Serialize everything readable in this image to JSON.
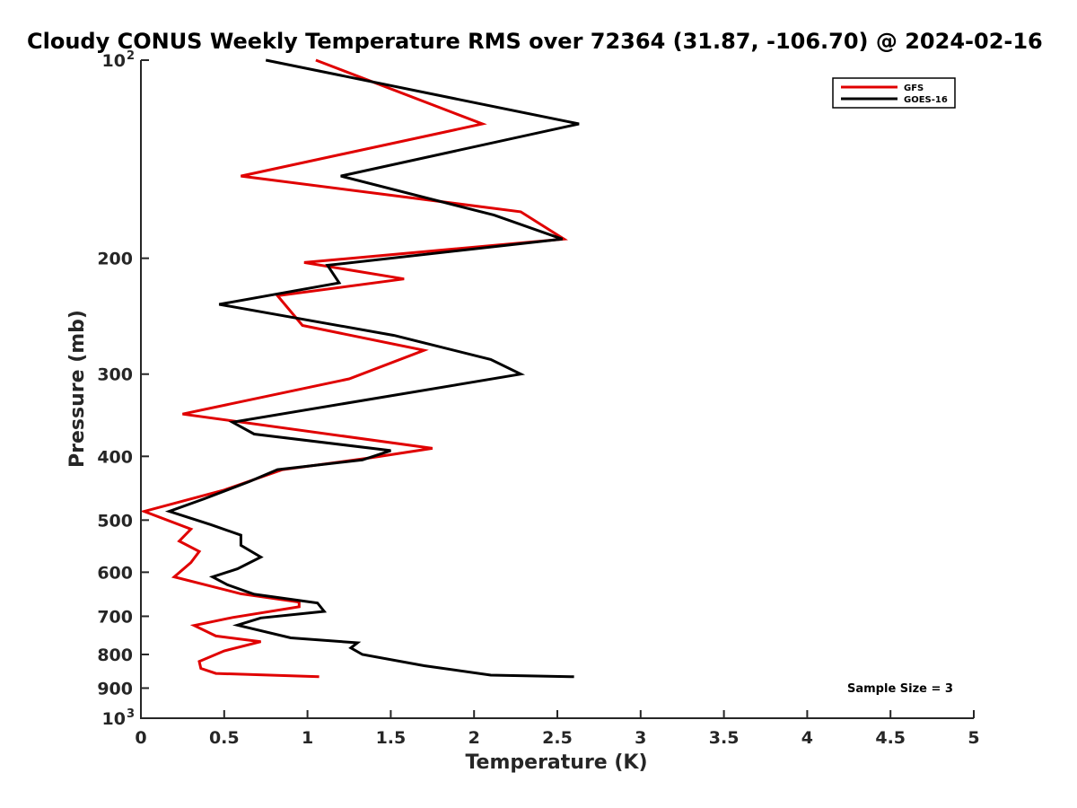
{
  "chart_data": {
    "type": "line",
    "title": "Cloudy CONUS Weekly Temperature RMS over 72364 (31.87, -106.70) @ 2024-02-16",
    "xlabel": "Temperature (K)",
    "ylabel": "Pressure (mb)",
    "xlim": [
      0,
      5
    ],
    "ylim": [
      100,
      1000
    ],
    "y_scale": "log",
    "y_reversed": true,
    "x_ticks": [
      "0",
      "0.5",
      "1",
      "1.5",
      "2",
      "2.5",
      "3",
      "3.5",
      "4",
      "4.5",
      "5"
    ],
    "y_ticks": [
      {
        "value": 100,
        "label": "10",
        "sup": "2"
      },
      {
        "value": 200,
        "label": "200",
        "sup": ""
      },
      {
        "value": 300,
        "label": "300",
        "sup": ""
      },
      {
        "value": 400,
        "label": "400",
        "sup": ""
      },
      {
        "value": 500,
        "label": "500",
        "sup": ""
      },
      {
        "value": 600,
        "label": "600",
        "sup": ""
      },
      {
        "value": 700,
        "label": "700",
        "sup": ""
      },
      {
        "value": 800,
        "label": "800",
        "sup": ""
      },
      {
        "value": 900,
        "label": "900",
        "sup": ""
      },
      {
        "value": 1000,
        "label": "10",
        "sup": "3"
      }
    ],
    "grid": false,
    "legend_position": "top-right",
    "annotation": "Sample Size = 3",
    "series": [
      {
        "name": "GFS",
        "color": "#e00000",
        "points": [
          [
            1.05,
            100
          ],
          [
            2.05,
            125
          ],
          [
            0.6,
            150
          ],
          [
            2.28,
            170
          ],
          [
            2.54,
            187
          ],
          [
            0.98,
            203
          ],
          [
            1.58,
            215
          ],
          [
            0.82,
            228
          ],
          [
            0.97,
            253
          ],
          [
            1.7,
            276
          ],
          [
            1.25,
            305
          ],
          [
            0.25,
            345
          ],
          [
            1.75,
            389
          ],
          [
            1.38,
            402
          ],
          [
            0.85,
            419
          ],
          [
            0.5,
            450
          ],
          [
            0.02,
            485
          ],
          [
            0.3,
            516
          ],
          [
            0.23,
            538
          ],
          [
            0.35,
            558
          ],
          [
            0.3,
            580
          ],
          [
            0.2,
            610
          ],
          [
            0.6,
            647
          ],
          [
            0.95,
            666
          ],
          [
            0.95,
            677
          ],
          [
            0.55,
            703
          ],
          [
            0.32,
            723
          ],
          [
            0.45,
            750
          ],
          [
            0.72,
            765
          ],
          [
            0.5,
            790
          ],
          [
            0.35,
            820
          ],
          [
            0.36,
            840
          ],
          [
            0.45,
            855
          ],
          [
            1.07,
            865
          ]
        ]
      },
      {
        "name": "GOES-16",
        "color": "#000000",
        "points": [
          [
            0.75,
            100
          ],
          [
            2.63,
            125
          ],
          [
            1.2,
            150
          ],
          [
            2.12,
            172
          ],
          [
            2.53,
            187
          ],
          [
            1.12,
            205
          ],
          [
            1.19,
            218
          ],
          [
            0.47,
            235
          ],
          [
            1.52,
            262
          ],
          [
            2.1,
            285
          ],
          [
            2.28,
            300
          ],
          [
            0.55,
            355
          ],
          [
            0.68,
            370
          ],
          [
            1.5,
            392
          ],
          [
            1.33,
            405
          ],
          [
            0.82,
            419
          ],
          [
            0.65,
            437
          ],
          [
            0.38,
            464
          ],
          [
            0.17,
            485
          ],
          [
            0.42,
            508
          ],
          [
            0.6,
            527
          ],
          [
            0.6,
            546
          ],
          [
            0.72,
            569
          ],
          [
            0.58,
            593
          ],
          [
            0.43,
            610
          ],
          [
            0.52,
            627
          ],
          [
            0.68,
            648
          ],
          [
            1.06,
            668
          ],
          [
            1.1,
            688
          ],
          [
            0.72,
            704
          ],
          [
            0.58,
            722
          ],
          [
            0.9,
            755
          ],
          [
            1.3,
            768
          ],
          [
            1.26,
            782
          ],
          [
            1.33,
            800
          ],
          [
            1.7,
            832
          ],
          [
            2.1,
            860
          ],
          [
            2.6,
            865
          ]
        ]
      }
    ]
  }
}
